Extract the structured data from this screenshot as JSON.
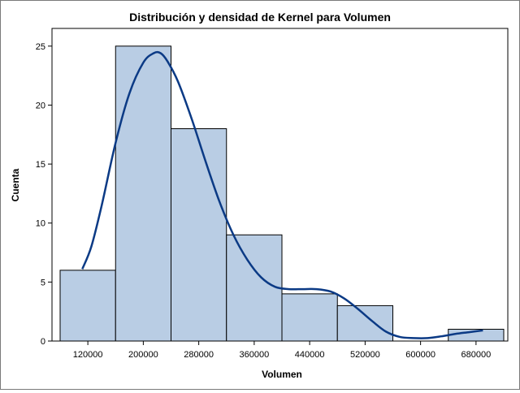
{
  "chart_data": {
    "type": "histogram",
    "title": "Distribución y densidad de Kernel para Volumen",
    "xlabel": "Volumen",
    "ylabel": "Cuenta",
    "xlim": [
      80000,
      720000
    ],
    "ylim": [
      0,
      26.5
    ],
    "x_ticks": [
      120000,
      200000,
      280000,
      360000,
      440000,
      520000,
      600000,
      680000
    ],
    "y_ticks": [
      0,
      5,
      10,
      15,
      20,
      25
    ],
    "bins": [
      {
        "x0": 80000,
        "x1": 160000,
        "count": 6
      },
      {
        "x0": 160000,
        "x1": 240000,
        "count": 25
      },
      {
        "x0": 240000,
        "x1": 320000,
        "count": 18
      },
      {
        "x0": 320000,
        "x1": 400000,
        "count": 9
      },
      {
        "x0": 400000,
        "x1": 480000,
        "count": 4
      },
      {
        "x0": 480000,
        "x1": 560000,
        "count": 3
      },
      {
        "x0": 640000,
        "x1": 720000,
        "count": 1
      }
    ],
    "kernel_density": {
      "x": [
        112000,
        125000,
        140000,
        160000,
        180000,
        200000,
        215000,
        225000,
        235000,
        250000,
        270000,
        290000,
        310000,
        330000,
        350000,
        370000,
        390000,
        410000,
        430000,
        450000,
        470000,
        490000,
        510000,
        530000,
        550000,
        570000,
        590000,
        610000,
        630000,
        650000,
        670000,
        690000
      ],
      "y": [
        6.1,
        8.0,
        11.5,
        16.8,
        21.0,
        23.6,
        24.4,
        24.4,
        23.7,
        22.0,
        18.8,
        15.2,
        11.8,
        9.0,
        6.9,
        5.4,
        4.6,
        4.4,
        4.4,
        4.4,
        4.2,
        3.6,
        2.7,
        1.7,
        0.8,
        0.35,
        0.25,
        0.25,
        0.4,
        0.6,
        0.75,
        0.9
      ]
    },
    "bar_fill": "#b9cde4",
    "bar_stroke": "#000000",
    "curve_color": "#0b3a85",
    "grid": false
  }
}
